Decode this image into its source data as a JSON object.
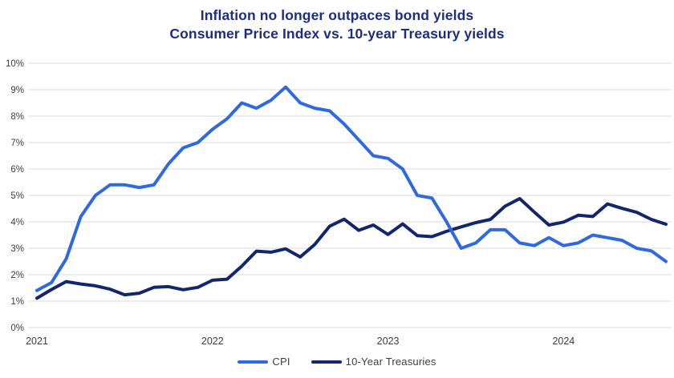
{
  "title": {
    "line1": "Inflation no longer outpaces bond yields",
    "line2": "Consumer Price Index vs. 10-year Treasury yields"
  },
  "colors": {
    "title": "#1d2e82",
    "cpi_line": "#2f69e1",
    "treasury_line": "#12266b",
    "gridline": "#d9d9d9",
    "axis_text": "#3d3d3d",
    "background": "#ffffff"
  },
  "chart_data": {
    "type": "line",
    "title": "Inflation no longer outpaces bond yields",
    "subtitle": "Consumer Price Index vs. 10-year Treasury yields",
    "x_unit": "month",
    "x_start": "2021-01",
    "x_end": "2024-08",
    "x_tick_labels": [
      "2021",
      "2022",
      "2023",
      "2024"
    ],
    "x_tick_month_indices": [
      0,
      12,
      24,
      36
    ],
    "ylim": [
      0,
      10
    ],
    "y_tick_labels": [
      "0%",
      "1%",
      "2%",
      "3%",
      "4%",
      "5%",
      "6%",
      "7%",
      "8%",
      "9%",
      "10%"
    ],
    "grid": "horizontal",
    "legend_position": "bottom-center",
    "series": [
      {
        "name": "CPI",
        "color": "#2f69e1",
        "values": [
          1.4,
          1.7,
          2.6,
          4.2,
          5.0,
          5.4,
          5.4,
          5.3,
          5.4,
          6.2,
          6.8,
          7.0,
          7.5,
          7.9,
          8.5,
          8.3,
          8.6,
          9.1,
          8.5,
          8.3,
          8.2,
          7.7,
          7.1,
          6.5,
          6.4,
          6.0,
          5.0,
          4.9,
          4.0,
          3.0,
          3.2,
          3.7,
          3.7,
          3.2,
          3.1,
          3.4,
          3.1,
          3.2,
          3.5,
          3.4,
          3.3,
          3.0,
          2.9,
          2.5
        ]
      },
      {
        "name": "10-Year Treasuries",
        "color": "#12266b",
        "values": [
          1.11,
          1.44,
          1.74,
          1.65,
          1.58,
          1.45,
          1.24,
          1.3,
          1.52,
          1.55,
          1.43,
          1.52,
          1.79,
          1.83,
          2.32,
          2.89,
          2.85,
          2.98,
          2.67,
          3.15,
          3.83,
          4.1,
          3.68,
          3.88,
          3.52,
          3.92,
          3.48,
          3.44,
          3.64,
          3.81,
          3.97,
          4.09,
          4.59,
          4.88,
          4.37,
          3.88,
          3.99,
          4.25,
          4.2,
          4.68,
          4.51,
          4.36,
          4.09,
          3.91
        ]
      }
    ]
  },
  "legend": {
    "items": [
      {
        "label": "CPI"
      },
      {
        "label": "10-Year Treasuries"
      }
    ]
  }
}
